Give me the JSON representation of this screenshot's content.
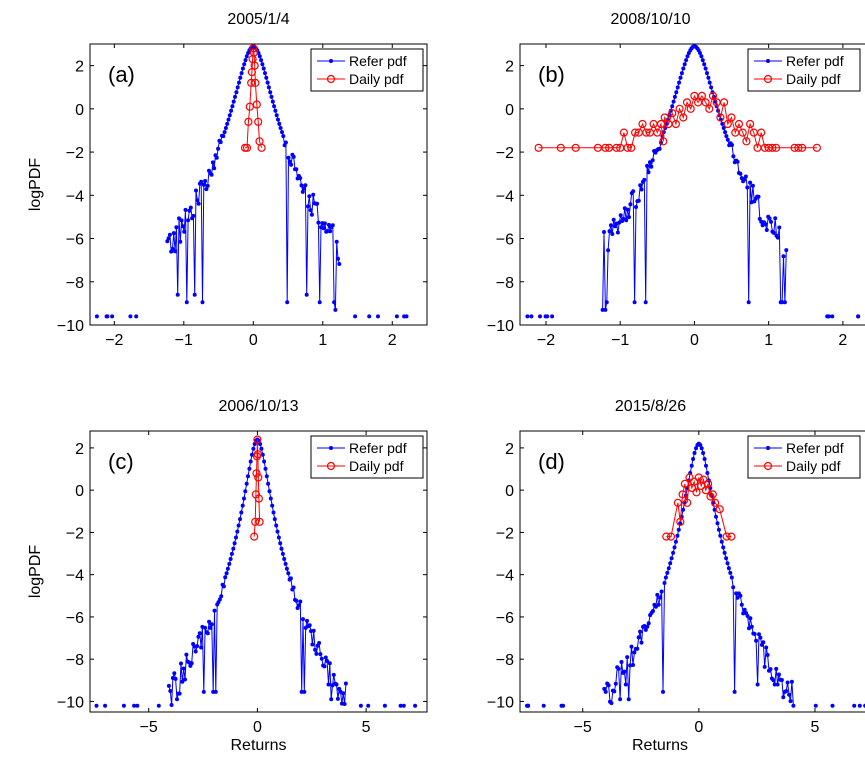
{
  "chart_data": [
    {
      "id": "a",
      "type": "line",
      "title": "2005/1/4",
      "panel_label": "(a)",
      "xlabel": "",
      "ylabel": "logPDF",
      "xlim": [
        -2.35,
        2.5
      ],
      "ylim": [
        -10,
        3
      ],
      "xticks": [
        -2,
        -1,
        0,
        1,
        2
      ],
      "yticks": [
        2,
        0,
        -2,
        -4,
        -6,
        -8,
        -10
      ],
      "xtick_labels": [
        "−2",
        "−1",
        "0",
        "1",
        "2"
      ],
      "ytick_labels": [
        "2",
        "0",
        "−2",
        "−4",
        "−6",
        "−8",
        "−10"
      ],
      "legend": {
        "position": "top-right",
        "entries": [
          "Refer pdf",
          "Daily pdf"
        ]
      },
      "series": [
        {
          "name": "Refer pdf",
          "color": "#0000ff",
          "marker": "dot",
          "width": 0.22,
          "peak": 2.9,
          "base": -9.6,
          "spread": 2.25
        },
        {
          "name": "Daily pdf",
          "color": "#ff0000",
          "marker": "circle",
          "points": [
            [
              -0.12,
              -1.8
            ],
            [
              -0.09,
              -1.8
            ],
            [
              -0.07,
              -0.6
            ],
            [
              -0.05,
              0.1
            ],
            [
              -0.03,
              1.2
            ],
            [
              -0.02,
              1.7
            ],
            [
              -0.01,
              2.3
            ],
            [
              0,
              2.8
            ],
            [
              0.01,
              2.6
            ],
            [
              0.02,
              2.0
            ],
            [
              0.03,
              1.2
            ],
            [
              0.05,
              0.2
            ],
            [
              0.07,
              -0.6
            ],
            [
              0.09,
              -1.5
            ],
            [
              0.12,
              -1.8
            ]
          ]
        }
      ]
    },
    {
      "id": "b",
      "type": "line",
      "title": "2008/10/10",
      "panel_label": "(b)",
      "xlabel": "",
      "ylabel": "",
      "xlim": [
        -2.35,
        2.5
      ],
      "ylim": [
        -10,
        3
      ],
      "xticks": [
        -2,
        -1,
        0,
        1,
        2
      ],
      "yticks": [
        2,
        0,
        -2,
        -4,
        -6,
        -8,
        -10
      ],
      "xtick_labels": [
        "−2",
        "−1",
        "0",
        "1",
        "2"
      ],
      "ytick_labels": [
        "2",
        "0",
        "−2",
        "−4",
        "−6",
        "−8",
        "−10"
      ],
      "legend": {
        "position": "top-right",
        "entries": [
          "Refer pdf",
          "Daily pdf"
        ]
      },
      "series": [
        {
          "name": "Refer pdf",
          "color": "#0000ff",
          "marker": "dot",
          "width": 0.22,
          "peak": 2.9,
          "base": -9.6,
          "spread": 2.25
        },
        {
          "name": "Daily pdf",
          "color": "#ff0000",
          "marker": "circle",
          "points": [
            [
              -2.1,
              -1.8
            ],
            [
              -1.8,
              -1.8
            ],
            [
              -1.6,
              -1.8
            ],
            [
              -1.3,
              -1.8
            ],
            [
              -1.2,
              -1.8
            ],
            [
              -1.15,
              -1.8
            ],
            [
              -1.05,
              -1.8
            ],
            [
              -1.0,
              -1.8
            ],
            [
              -0.95,
              -1.1
            ],
            [
              -0.9,
              -1.8
            ],
            [
              -0.85,
              -1.8
            ],
            [
              -0.8,
              -1.1
            ],
            [
              -0.75,
              -1.1
            ],
            [
              -0.7,
              -0.7
            ],
            [
              -0.65,
              -1.1
            ],
            [
              -0.6,
              -1.1
            ],
            [
              -0.55,
              -0.7
            ],
            [
              -0.5,
              -1.1
            ],
            [
              -0.45,
              -0.7
            ],
            [
              -0.42,
              -1.5
            ],
            [
              -0.4,
              -0.4
            ],
            [
              -0.35,
              -0.7
            ],
            [
              -0.3,
              -0.2
            ],
            [
              -0.25,
              -0.7
            ],
            [
              -0.2,
              0.0
            ],
            [
              -0.15,
              -0.4
            ],
            [
              -0.1,
              0.3
            ],
            [
              -0.05,
              0.0
            ],
            [
              0,
              0.6
            ],
            [
              0.05,
              0.3
            ],
            [
              0.1,
              0.6
            ],
            [
              0.15,
              0.3
            ],
            [
              0.2,
              0.0
            ],
            [
              0.25,
              0.6
            ],
            [
              0.3,
              0.3
            ],
            [
              0.35,
              -0.4
            ],
            [
              0.4,
              0.3
            ],
            [
              0.45,
              -0.7
            ],
            [
              0.5,
              -0.4
            ],
            [
              0.55,
              -1.1
            ],
            [
              0.6,
              -0.7
            ],
            [
              0.65,
              -1.1
            ],
            [
              0.7,
              -1.5
            ],
            [
              0.75,
              -0.7
            ],
            [
              0.8,
              -1.1
            ],
            [
              0.85,
              -1.8
            ],
            [
              0.9,
              -1.1
            ],
            [
              0.95,
              -1.8
            ],
            [
              1.0,
              -1.8
            ],
            [
              1.05,
              -1.8
            ],
            [
              1.1,
              -1.8
            ],
            [
              1.35,
              -1.8
            ],
            [
              1.4,
              -1.8
            ],
            [
              1.45,
              -1.8
            ],
            [
              1.65,
              -1.8
            ]
          ]
        }
      ]
    },
    {
      "id": "c",
      "type": "line",
      "title": "2006/10/13",
      "panel_label": "(c)",
      "xlabel": "Returns",
      "ylabel": "logPDF",
      "xlim": [
        -7.7,
        7.8
      ],
      "ylim": [
        -10.5,
        2.8
      ],
      "xticks": [
        -5,
        0,
        5
      ],
      "yticks": [
        2,
        0,
        -2,
        -4,
        -6,
        -8,
        -10
      ],
      "xtick_labels": [
        "−5",
        "0",
        "5"
      ],
      "ytick_labels": [
        "2",
        "0",
        "−2",
        "−4",
        "−6",
        "−8",
        "−10"
      ],
      "legend": {
        "position": "top-right",
        "entries": [
          "Refer pdf",
          "Daily pdf"
        ]
      },
      "series": [
        {
          "name": "Refer pdf",
          "color": "#0000ff",
          "marker": "dot",
          "width": 0.45,
          "peak": 2.4,
          "base": -10.2,
          "spread": 7.4
        },
        {
          "name": "Daily pdf",
          "color": "#ff0000",
          "marker": "circle",
          "points": [
            [
              -0.15,
              -2.2
            ],
            [
              -0.1,
              -1.5
            ],
            [
              -0.07,
              -0.2
            ],
            [
              -0.04,
              0.8
            ],
            [
              -0.02,
              1.6
            ],
            [
              0,
              2.4
            ],
            [
              0.02,
              1.7
            ],
            [
              0.04,
              0.6
            ],
            [
              0.07,
              -0.4
            ],
            [
              0.1,
              -1.5
            ]
          ]
        }
      ]
    },
    {
      "id": "d",
      "type": "line",
      "title": "2015/8/26",
      "panel_label": "(d)",
      "xlabel": "Returns",
      "ylabel": "",
      "xlim": [
        -7.7,
        7.8
      ],
      "ylim": [
        -10.5,
        2.8
      ],
      "xticks": [
        -5,
        0,
        5
      ],
      "yticks": [
        2,
        0,
        -2,
        -4,
        -6,
        -8,
        -10
      ],
      "xtick_labels": [
        "−5",
        "0",
        "5"
      ],
      "ytick_labels": [
        "2",
        "0",
        "−2",
        "−4",
        "−6",
        "−8",
        "−10"
      ],
      "legend": {
        "position": "top-right",
        "entries": [
          "Refer pdf",
          "Daily pdf"
        ]
      },
      "series": [
        {
          "name": "Refer pdf",
          "color": "#0000ff",
          "marker": "dot",
          "width": 0.45,
          "peak": 2.2,
          "base": -10.2,
          "spread": 7.4
        },
        {
          "name": "Daily pdf",
          "color": "#ff0000",
          "marker": "circle",
          "points": [
            [
              -1.4,
              -2.2
            ],
            [
              -1.2,
              -2.2
            ],
            [
              -0.9,
              -0.6
            ],
            [
              -0.8,
              -1.5
            ],
            [
              -0.7,
              -0.2
            ],
            [
              -0.6,
              0.3
            ],
            [
              -0.5,
              -0.6
            ],
            [
              -0.4,
              0.6
            ],
            [
              -0.3,
              0.1
            ],
            [
              -0.2,
              0.4
            ],
            [
              -0.1,
              -0.1
            ],
            [
              0,
              0.6
            ],
            [
              0.1,
              0.2
            ],
            [
              0.2,
              0.5
            ],
            [
              0.3,
              0.0
            ],
            [
              0.4,
              0.3
            ],
            [
              0.5,
              -0.3
            ],
            [
              0.6,
              -0.2
            ],
            [
              0.7,
              -0.6
            ],
            [
              0.9,
              -0.9
            ],
            [
              1.2,
              -2.2
            ],
            [
              1.4,
              -2.2
            ]
          ]
        }
      ]
    }
  ]
}
